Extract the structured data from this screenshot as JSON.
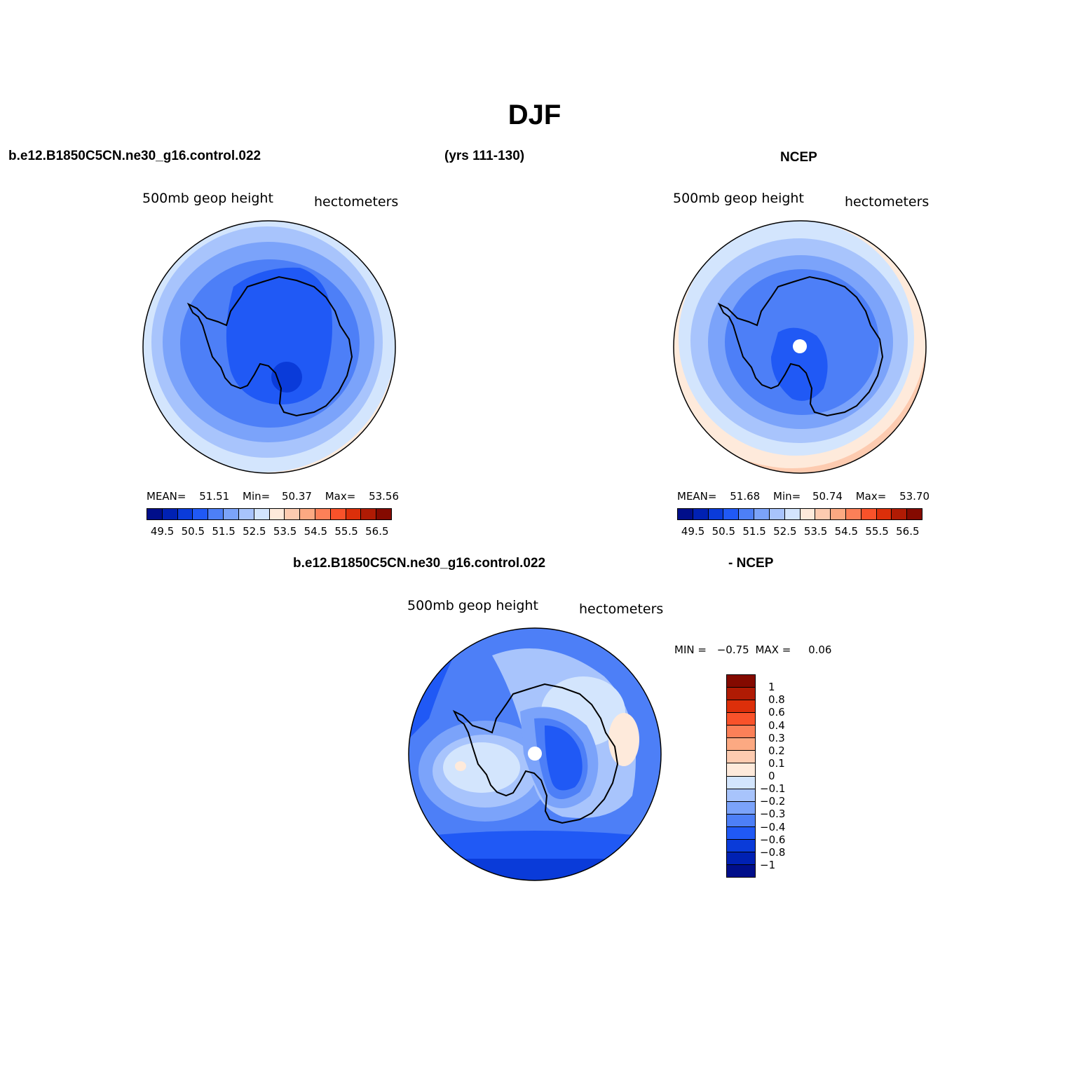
{
  "title": "DJF",
  "header": {
    "case_name": "b.e12.B1850C5CN.ne30_g16.control.022",
    "years": "(yrs 111-130)",
    "obs_name": "NCEP"
  },
  "panels": [
    {
      "id": "model",
      "left_label": "500mb geop height",
      "right_label": "hectometers",
      "stats": {
        "mean_label": "MEAN=",
        "mean": "51.51",
        "min_label": "Min=",
        "min": "50.37",
        "max_label": "Max=",
        "max": "53.56"
      }
    },
    {
      "id": "obs",
      "left_label": "500mb geop height",
      "right_label": "hectometers",
      "stats": {
        "mean_label": "MEAN=",
        "mean": "51.68",
        "min_label": "Min=",
        "min": "50.74",
        "max_label": "Max=",
        "max": "53.70"
      }
    },
    {
      "id": "diff",
      "title_left": "b.e12.B1850C5CN.ne30_g16.control.022",
      "title_right": "- NCEP",
      "left_label": "500mb geop height",
      "right_label": "hectometers",
      "stats": {
        "min_label": "MIN =",
        "min": "−0.75",
        "max_label": "MAX =",
        "max": "0.06"
      }
    }
  ],
  "colorbar_abs": {
    "colors": [
      "#000e8a",
      "#0021b3",
      "#0a3bd9",
      "#2059f5",
      "#4d7ff7",
      "#7ba3fa",
      "#a8c4fc",
      "#d3e5fd",
      "#feeadb",
      "#fdcbb0",
      "#fca982",
      "#fc8058",
      "#f9522a",
      "#dc2f0a",
      "#b01b04",
      "#840a00"
    ],
    "labels": [
      "49.5",
      "50.5",
      "51.5",
      "52.5",
      "53.5",
      "54.5",
      "55.5",
      "56.5"
    ]
  },
  "colorbar_diff": {
    "colors": [
      "#840a00",
      "#b01b04",
      "#dc2f0a",
      "#f9522a",
      "#fc8058",
      "#fca982",
      "#fdcbb0",
      "#feeadb",
      "#d3e5fd",
      "#a8c4fc",
      "#7ba3fa",
      "#4d7ff7",
      "#2059f5",
      "#0a3bd9",
      "#0021b3",
      "#000e8a"
    ],
    "labels": [
      "1",
      "0.8",
      "0.6",
      "0.4",
      "0.3",
      "0.2",
      "0.1",
      "0",
      "−0.1",
      "−0.2",
      "−0.3",
      "−0.4",
      "−0.6",
      "−0.8",
      "−1"
    ]
  }
}
